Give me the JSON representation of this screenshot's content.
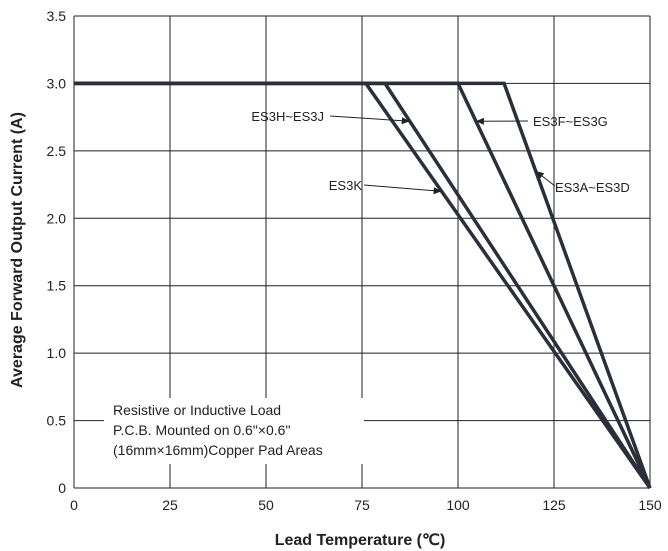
{
  "chart_data": {
    "type": "line",
    "title": "",
    "xlabel": "Lead Temperature (℃)",
    "ylabel": "Average Forward Output Current (A)",
    "xlim": [
      0,
      150
    ],
    "ylim": [
      0,
      3.5
    ],
    "grid": true,
    "x_ticks": [
      "0",
      "25",
      "50",
      "75",
      "100",
      "125",
      "150"
    ],
    "y_ticks": [
      "0",
      "0.5",
      "1.0",
      "1.5",
      "2.0",
      "2.5",
      "3.0",
      "3.5"
    ],
    "series": [
      {
        "name": "ES3A~ES3D",
        "points": [
          [
            0,
            3.0
          ],
          [
            112,
            3.0
          ],
          [
            150,
            0
          ]
        ]
      },
      {
        "name": "ES3F~ES3G",
        "points": [
          [
            0,
            3.0
          ],
          [
            100,
            3.0
          ],
          [
            150,
            0
          ]
        ]
      },
      {
        "name": "ES3H~ES3J",
        "points": [
          [
            0,
            3.0
          ],
          [
            81,
            3.0
          ],
          [
            150,
            0
          ]
        ]
      },
      {
        "name": "ES3K",
        "points": [
          [
            0,
            3.0
          ],
          [
            76,
            3.0
          ],
          [
            150,
            0
          ]
        ]
      }
    ],
    "annotations": [
      "Resistive or Inductive Load",
      "P.C.B. Mounted on 0.6\"×0.6\"",
      "(16mm×16mm)Copper Pad Areas"
    ]
  }
}
